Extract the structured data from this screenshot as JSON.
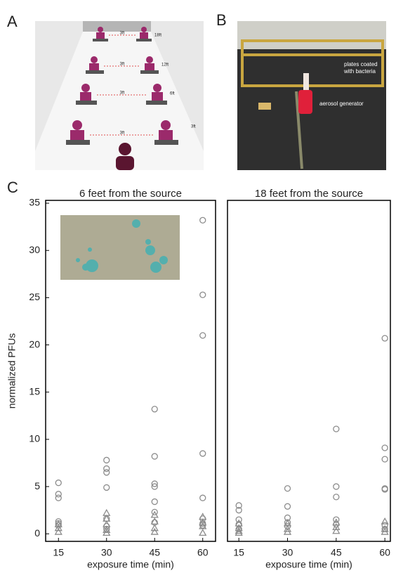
{
  "panels": {
    "a": "A",
    "b": "B",
    "c": "C"
  },
  "panel_a": {
    "spacing_labels": [
      "3ft",
      "3ft",
      "3ft",
      "3ft"
    ],
    "distance_labels": [
      "18ft",
      "12ft",
      "6ft",
      "3ft"
    ]
  },
  "panel_b": {
    "plates_label": [
      "plates coated",
      "with bacteria"
    ],
    "generator_label": "aerosol generator"
  },
  "chart_data": [
    {
      "type": "scatter",
      "title": "6 feet from the source",
      "xlabel": "exposure time (min)",
      "ylabel": "normalized PFUs",
      "xlim": [
        11,
        64
      ],
      "xticks": [
        15,
        30,
        45,
        60
      ],
      "ylim": [
        -0.8,
        35.3
      ],
      "yticks": [
        0,
        5,
        10,
        15,
        20,
        25,
        30,
        35
      ],
      "series": [
        {
          "marker": "circle",
          "color": "#8c8c8c",
          "x": [
            15,
            15,
            15,
            15,
            15,
            15,
            30,
            30,
            30,
            30,
            30,
            30,
            30,
            45,
            45,
            45,
            45,
            45,
            45,
            45,
            60,
            60,
            60,
            60,
            60,
            60,
            60,
            60
          ],
          "y": [
            5.4,
            4.2,
            3.8,
            1.3,
            1.1,
            0.9,
            7.8,
            6.9,
            6.5,
            4.9,
            1.6,
            0.8,
            0.5,
            13.2,
            8.2,
            5.3,
            5.0,
            3.4,
            2.3,
            1.2,
            33.2,
            25.3,
            21.0,
            8.5,
            3.8,
            1.6,
            1.1,
            0.9
          ]
        },
        {
          "marker": "triangle",
          "color": "#8c8c8c",
          "x": [
            15,
            15,
            15,
            30,
            30,
            30,
            30,
            30,
            45,
            45,
            45,
            45,
            60,
            60,
            60,
            60
          ],
          "y": [
            1.0,
            0.6,
            0.2,
            2.2,
            1.6,
            1.0,
            0.4,
            0.1,
            2.0,
            1.3,
            0.6,
            0.2,
            1.8,
            1.2,
            0.8,
            0.1
          ]
        }
      ]
    },
    {
      "type": "scatter",
      "title": "18 feet from the source",
      "xlabel": "exposure time (min)",
      "xlim": [
        11.5,
        61.7
      ],
      "xticks": [
        15,
        30,
        45,
        60
      ],
      "ylim": [
        -0.8,
        35.3
      ],
      "series": [
        {
          "marker": "circle",
          "color": "#8c8c8c",
          "x": [
            15,
            15,
            15,
            15,
            15,
            30,
            30,
            30,
            30,
            30,
            45,
            45,
            45,
            45,
            45,
            60,
            60,
            60,
            60,
            60,
            60,
            60
          ],
          "y": [
            3.0,
            2.5,
            1.5,
            1.0,
            0.5,
            4.8,
            2.9,
            1.7,
            1.2,
            0.8,
            11.1,
            5.0,
            3.9,
            1.5,
            1.0,
            20.7,
            9.1,
            7.9,
            4.8,
            4.7,
            0.9,
            0.5
          ]
        },
        {
          "marker": "triangle",
          "color": "#8c8c8c",
          "x": [
            15,
            15,
            15,
            15,
            30,
            30,
            30,
            45,
            45,
            45,
            60,
            60,
            60
          ],
          "y": [
            1.1,
            0.6,
            0.3,
            0.1,
            1.1,
            0.5,
            0.2,
            1.2,
            0.7,
            0.3,
            1.3,
            0.5,
            0.2
          ]
        }
      ]
    }
  ]
}
